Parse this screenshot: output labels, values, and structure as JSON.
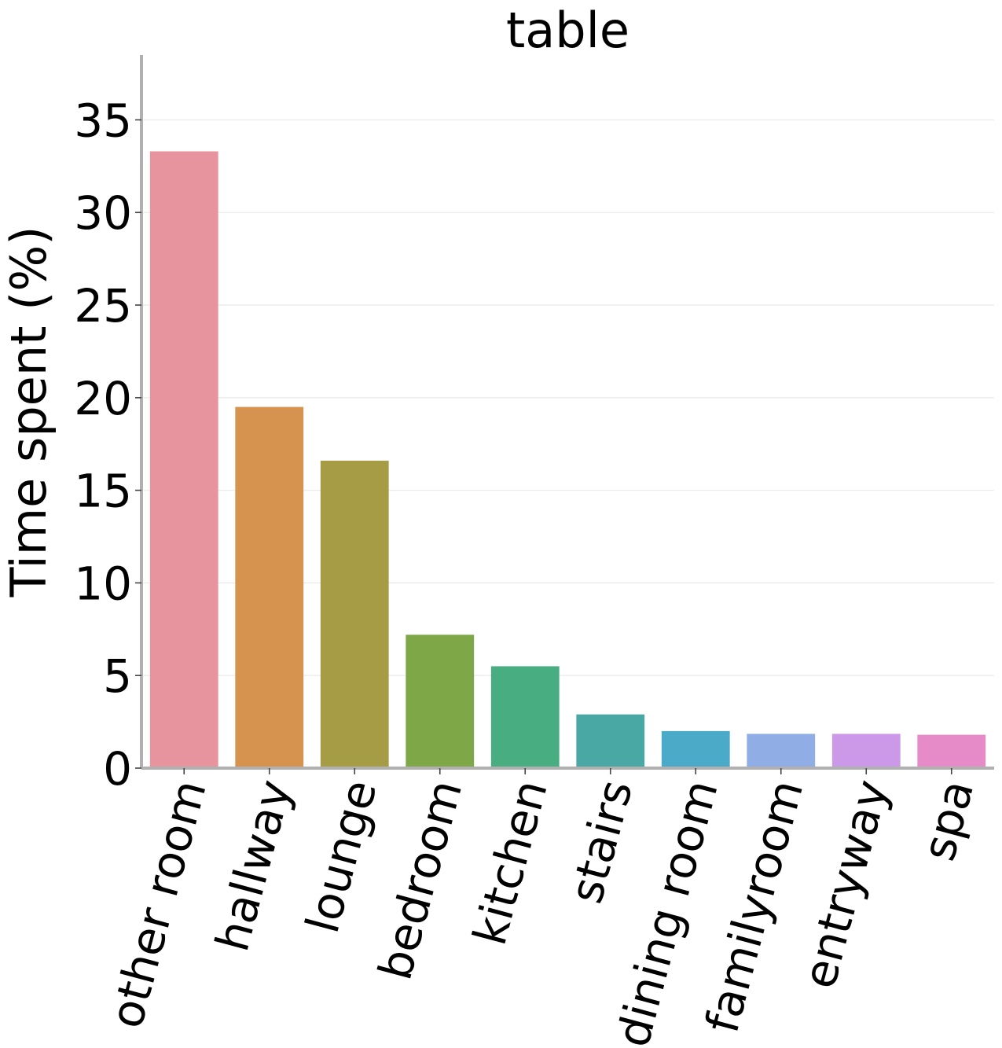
{
  "chart_data": {
    "type": "bar",
    "title": "table",
    "xlabel": "",
    "ylabel": "Time spent (%)",
    "ylim": [
      0,
      38.5
    ],
    "yticks": [
      0,
      5,
      10,
      15,
      20,
      25,
      30,
      35
    ],
    "ytick_labels": [
      "0",
      "5",
      "10",
      "15",
      "20",
      "25",
      "30",
      "35"
    ],
    "grid": "horizontal",
    "legend": "none",
    "categories": [
      "other room",
      "hallway",
      "lounge",
      "bedroom",
      "kitchen",
      "stairs",
      "dining room",
      "familyroom",
      "entryway",
      "spa"
    ],
    "values": [
      33.3,
      19.5,
      16.6,
      7.2,
      5.5,
      2.9,
      2.0,
      1.85,
      1.85,
      1.8
    ],
    "colors": [
      "#e8949f",
      "#d6924f",
      "#a69c45",
      "#7ea848",
      "#49ad82",
      "#4aa8a4",
      "#4aaac7",
      "#91ade6",
      "#cc98e8",
      "#e68ac8"
    ]
  }
}
